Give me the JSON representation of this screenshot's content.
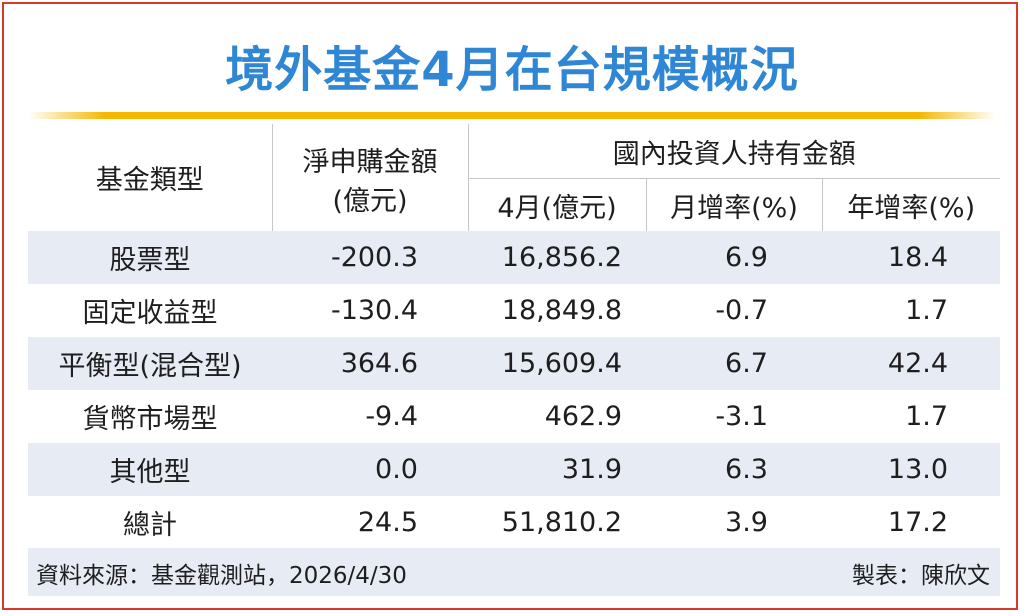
{
  "title": "境外基金4月在台規模概況",
  "header": {
    "fund_type": "基金類型",
    "net_purchase_line1": "淨申購金額",
    "net_purchase_line2": "(億元)",
    "domestic_holdings": "國內投資人持有金額",
    "april_amount": "4月(億元)",
    "mom_rate": "月增率(%)",
    "yoy_rate": "年增率(%)"
  },
  "rows": [
    {
      "type": "股票型",
      "net": "-200.3",
      "april": "16,856.2",
      "mom": "6.9",
      "yoy": "18.4"
    },
    {
      "type": "固定收益型",
      "net": "-130.4",
      "april": "18,849.8",
      "mom": "-0.7",
      "yoy": "1.7"
    },
    {
      "type": "平衡型(混合型)",
      "net": "364.6",
      "april": "15,609.4",
      "mom": "6.7",
      "yoy": "42.4"
    },
    {
      "type": "貨幣市場型",
      "net": "-9.4",
      "april": "462.9",
      "mom": "-3.1",
      "yoy": "1.7"
    },
    {
      "type": "其他型",
      "net": "0.0",
      "april": "31.9",
      "mom": "6.3",
      "yoy": "13.0"
    },
    {
      "type": "總計",
      "net": "24.5",
      "april": "51,810.2",
      "mom": "3.9",
      "yoy": "17.2"
    }
  ],
  "footer": {
    "source": "資料來源：基金觀測站，2026/4/30",
    "maker": "製表：陳欣文"
  },
  "colors": {
    "title": "#2f86d4",
    "accent_line": "#f5b800",
    "stripe": "#e6ebf4",
    "frame": "#d83a2a"
  }
}
